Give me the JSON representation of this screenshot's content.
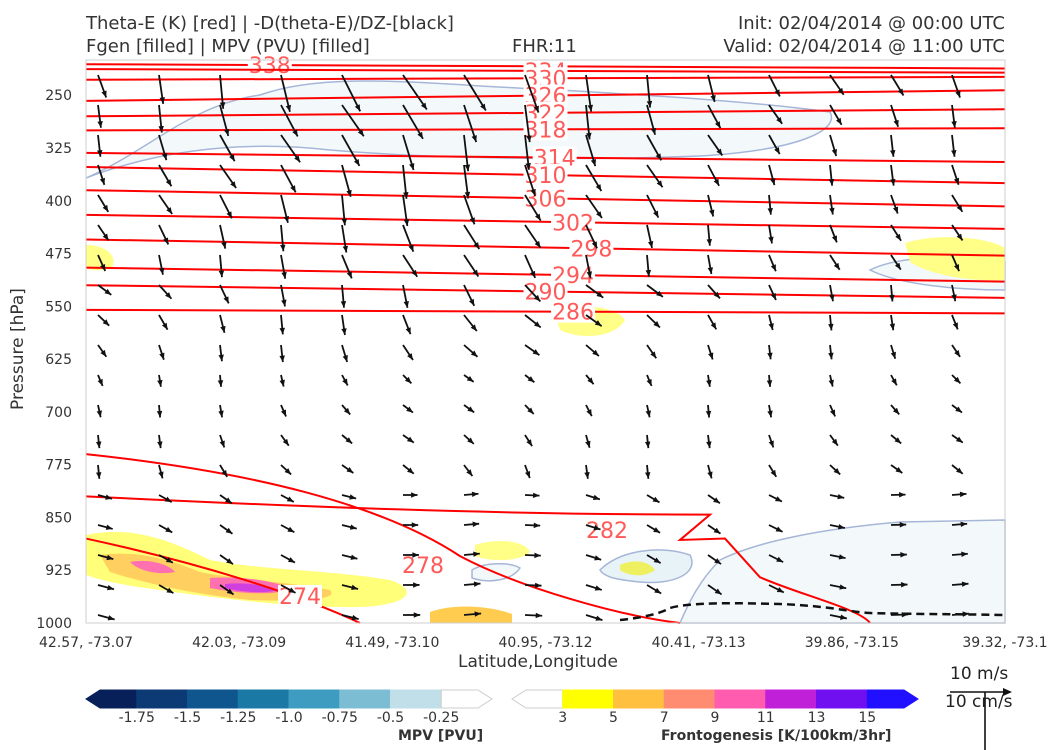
{
  "titles": {
    "line1_left": "Theta-E (K) [red] | -D(theta-E)/DZ-[black]",
    "line2_left": "Fgen [filled] | MPV (PVU) [filled]",
    "fhr": "FHR:11",
    "init": "Init: 02/04/2014 @ 00:00 UTC",
    "valid": "Valid: 02/04/2014 @ 11:00 UTC"
  },
  "chart_data": {
    "type": "cross-section",
    "xlabel": "Latitude,Longitude",
    "ylabel": "Pressure [hPa]",
    "x_ticks": [
      "42.57, -73.07",
      "42.03, -73.09",
      "41.49, -73.10",
      "40.95, -73.12",
      "40.41, -73.13",
      "39.86, -73.15",
      "39.32, -73.1"
    ],
    "y_ticks": [
      250,
      325,
      400,
      475,
      550,
      625,
      700,
      775,
      850,
      925,
      1000
    ],
    "ylim": [
      1000,
      200
    ],
    "y_inverted": true,
    "theta_e_contours": [
      {
        "value": 338,
        "label_at": 0.2
      },
      {
        "value": 334,
        "label_at": 0.5
      },
      {
        "value": 330,
        "label_at": 0.5
      },
      {
        "value": 326,
        "label_at": 0.5
      },
      {
        "value": 322,
        "label_at": 0.5
      },
      {
        "value": 318,
        "label_at": 0.5
      },
      {
        "value": 314,
        "label_at": 0.51
      },
      {
        "value": 310,
        "label_at": 0.5
      },
      {
        "value": 306,
        "label_at": 0.5
      },
      {
        "value": 302,
        "label_at": 0.53
      },
      {
        "value": 298,
        "label_at": 0.55
      },
      {
        "value": 294,
        "label_at": 0.53
      },
      {
        "value": 290,
        "label_at": 0.5
      },
      {
        "value": 286,
        "label_at": 0.53
      },
      {
        "value": 282,
        "label_at": 0.56
      },
      {
        "value": 278,
        "label_at": 0.37
      },
      {
        "value": 274,
        "label_at": 0.23
      }
    ],
    "mpv_colorbar": {
      "label": "MPV [PVU]",
      "tick_labels": [
        "-1.75",
        "-1.5",
        "-1.25",
        "-1.0",
        "-0.75",
        "-0.5",
        "-0.25"
      ],
      "colors": [
        "#08205a",
        "#0c3a74",
        "#10568e",
        "#1a7aa5",
        "#3e9cc0",
        "#7cbdd4",
        "#c0dfe8",
        "#ffffff"
      ]
    },
    "fgen_colorbar": {
      "label": "Frontogenesis [K/100km/3hr]",
      "tick_labels": [
        "3",
        "5",
        "7",
        "9",
        "11",
        "13",
        "15"
      ],
      "colors": [
        "#ffffff",
        "#ffff00",
        "#ffc040",
        "#ff8c70",
        "#ff5cb0",
        "#c020d8",
        "#7010f0",
        "#2010ff"
      ]
    },
    "reference_vector": {
      "label_top": "10 m/s",
      "label_bottom": "10 cm/s"
    },
    "colors": {
      "theta_e": "#ff0000",
      "theta_e_label": "#ff5a5a",
      "mpv_outline": "#a6b6d8",
      "mpv_fill": "#f3f9fa",
      "vectors": "#111111"
    }
  }
}
